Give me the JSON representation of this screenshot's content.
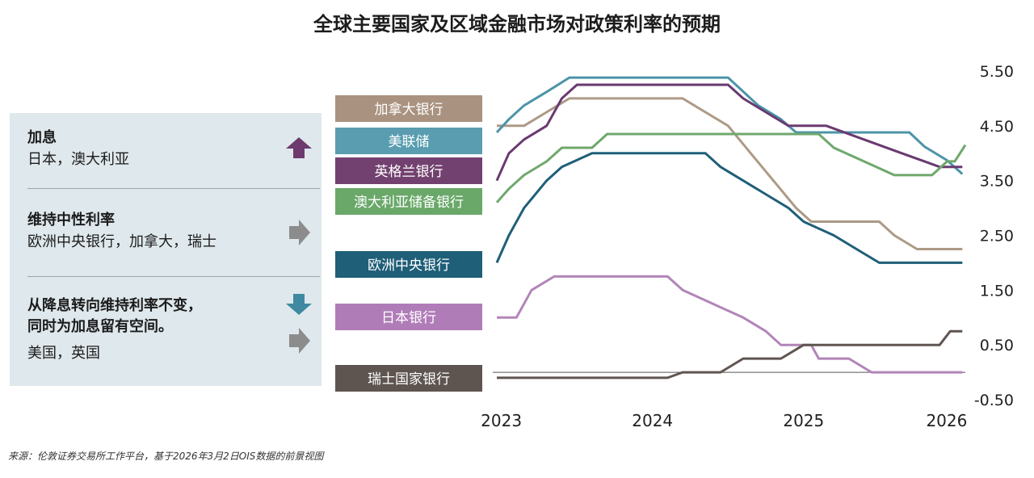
{
  "title": "全球主要国家及区域金融市场对政策利率的预期",
  "source": "来源：伦敦证券交易所工作平台，基于2026年3月2日OIS数据的前景视图",
  "panel": {
    "sections": [
      {
        "title": "加息",
        "text": "日本，澳大利亚",
        "arrow": "up-arrow-icon",
        "color": "#6e3a6e"
      },
      {
        "title": "维持中性利率",
        "text": "欧洲中央银行，加拿大，瑞士",
        "arrow": "right-arrow-icon",
        "color": "#8c8c8c"
      },
      {
        "title": "从降息转向维持利率不变，",
        "title2": "同时为加息留有空间。",
        "text": "美国，英国",
        "arrow": "down-then-right-icon",
        "color": "#3f8aa0"
      }
    ]
  },
  "chart_data": {
    "type": "line",
    "x_ticks": [
      "2023",
      "2024",
      "2025",
      "2026"
    ],
    "x_tick_values": [
      2023,
      2024,
      2025,
      2026
    ],
    "y_ticks": [
      "5.50",
      "4.50",
      "3.50",
      "2.50",
      "1.50",
      "0.50",
      "-0.50"
    ],
    "ylim": [
      -0.5,
      5.5
    ],
    "xlim": [
      2022.9,
      2026.1
    ],
    "series": [
      {
        "name": "加拿大银行",
        "color": "#ad9a86",
        "points": [
          [
            2022.97,
            4.5
          ],
          [
            2023.15,
            4.5
          ],
          [
            2023.3,
            4.75
          ],
          [
            2023.45,
            5.0
          ],
          [
            2023.6,
            5.0
          ],
          [
            2024.2,
            5.0
          ],
          [
            2024.35,
            4.75
          ],
          [
            2024.5,
            4.5
          ],
          [
            2024.65,
            4.0
          ],
          [
            2024.8,
            3.5
          ],
          [
            2024.95,
            3.0
          ],
          [
            2025.05,
            2.75
          ],
          [
            2025.25,
            2.75
          ],
          [
            2025.5,
            2.75
          ],
          [
            2025.6,
            2.5
          ],
          [
            2025.75,
            2.25
          ],
          [
            2026.05,
            2.25
          ]
        ]
      },
      {
        "name": "美联储",
        "color": "#4c94a8",
        "points": [
          [
            2022.97,
            4.38
          ],
          [
            2023.05,
            4.62
          ],
          [
            2023.15,
            4.87
          ],
          [
            2023.3,
            5.12
          ],
          [
            2023.45,
            5.38
          ],
          [
            2024.5,
            5.38
          ],
          [
            2024.7,
            4.87
          ],
          [
            2024.85,
            4.62
          ],
          [
            2024.95,
            4.38
          ],
          [
            2025.7,
            4.38
          ],
          [
            2025.8,
            4.12
          ],
          [
            2025.95,
            3.87
          ],
          [
            2026.05,
            3.62
          ]
        ]
      },
      {
        "name": "英格兰银行",
        "color": "#6a3a70",
        "points": [
          [
            2022.97,
            3.5
          ],
          [
            2023.05,
            4.0
          ],
          [
            2023.15,
            4.25
          ],
          [
            2023.3,
            4.5
          ],
          [
            2023.4,
            5.0
          ],
          [
            2023.5,
            5.25
          ],
          [
            2024.5,
            5.25
          ],
          [
            2024.6,
            5.0
          ],
          [
            2024.75,
            4.75
          ],
          [
            2024.9,
            4.5
          ],
          [
            2025.15,
            4.5
          ],
          [
            2025.4,
            4.25
          ],
          [
            2025.65,
            4.0
          ],
          [
            2025.9,
            3.75
          ],
          [
            2026.05,
            3.75
          ]
        ]
      },
      {
        "name": "澳大利亚储备银行",
        "color": "#6fa86c",
        "points": [
          [
            2022.97,
            3.1
          ],
          [
            2023.05,
            3.35
          ],
          [
            2023.15,
            3.6
          ],
          [
            2023.3,
            3.85
          ],
          [
            2023.4,
            4.1
          ],
          [
            2023.6,
            4.1
          ],
          [
            2023.7,
            4.35
          ],
          [
            2024.2,
            4.35
          ],
          [
            2025.1,
            4.35
          ],
          [
            2025.2,
            4.1
          ],
          [
            2025.4,
            3.85
          ],
          [
            2025.6,
            3.6
          ],
          [
            2025.85,
            3.6
          ],
          [
            2025.95,
            3.85
          ],
          [
            2026.0,
            3.85
          ],
          [
            2026.07,
            4.15
          ]
        ]
      },
      {
        "name": "欧洲中央银行",
        "color": "#1f5f78",
        "points": [
          [
            2022.97,
            2.0
          ],
          [
            2023.05,
            2.5
          ],
          [
            2023.15,
            3.0
          ],
          [
            2023.3,
            3.5
          ],
          [
            2023.4,
            3.75
          ],
          [
            2023.6,
            4.0
          ],
          [
            2024.35,
            4.0
          ],
          [
            2024.45,
            3.75
          ],
          [
            2024.6,
            3.5
          ],
          [
            2024.75,
            3.25
          ],
          [
            2024.9,
            3.0
          ],
          [
            2025.0,
            2.75
          ],
          [
            2025.2,
            2.5
          ],
          [
            2025.35,
            2.25
          ],
          [
            2025.5,
            2.0
          ],
          [
            2026.05,
            2.0
          ]
        ]
      },
      {
        "name": "日本银行",
        "color": "#b285b8",
        "points": [
          [
            2022.97,
            1.0
          ],
          [
            2023.1,
            1.0
          ],
          [
            2023.2,
            1.5
          ],
          [
            2023.35,
            1.75
          ],
          [
            2024.1,
            1.75
          ],
          [
            2024.2,
            1.5
          ],
          [
            2024.4,
            1.25
          ],
          [
            2024.6,
            1.0
          ],
          [
            2024.75,
            0.75
          ],
          [
            2024.85,
            0.5
          ],
          [
            2025.05,
            0.5
          ],
          [
            2025.1,
            0.25
          ],
          [
            2025.3,
            0.25
          ],
          [
            2025.45,
            0.0
          ],
          [
            2026.05,
            0.0
          ]
        ]
      },
      {
        "name": "瑞士国家银行",
        "color": "#5f5550",
        "points": [
          [
            2022.97,
            -0.1
          ],
          [
            2023.5,
            -0.1
          ],
          [
            2024.1,
            -0.1
          ],
          [
            2024.2,
            0.0
          ],
          [
            2024.45,
            0.0
          ],
          [
            2024.6,
            0.25
          ],
          [
            2024.85,
            0.25
          ],
          [
            2025.0,
            0.5
          ],
          [
            2025.15,
            0.5
          ],
          [
            2025.3,
            0.5
          ],
          [
            2025.9,
            0.5
          ],
          [
            2025.97,
            0.75
          ],
          [
            2026.05,
            0.75
          ]
        ]
      }
    ],
    "legend": [
      {
        "name": "加拿大银行",
        "color": "#a9927f"
      },
      {
        "name": "美联储",
        "color": "#5a9db0"
      },
      {
        "name": "英格兰银行",
        "color": "#72416f"
      },
      {
        "name": "澳大利亚储备银行",
        "color": "#6aa86a"
      },
      {
        "name": "欧洲中央银行",
        "color": "#1f5f78"
      },
      {
        "name": "日本银行",
        "color": "#b07cb8"
      },
      {
        "name": "瑞士国家银行",
        "color": "#5e5450"
      }
    ],
    "baseline": 0
  }
}
